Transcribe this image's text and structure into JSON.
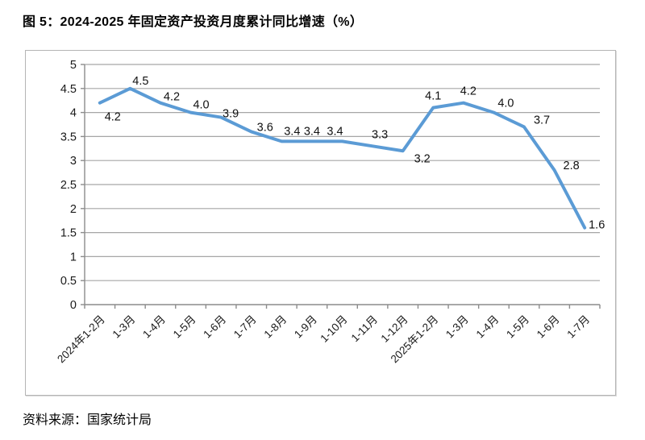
{
  "page": {
    "title": "图 5：2024-2025 年固定资产投资月度累计同比增速（%）",
    "source": "资料来源：国家统计局"
  },
  "chart_data": {
    "type": "line",
    "title": "图 5：2024-2025 年固定资产投资月度累计同比增速（%）",
    "categories": [
      "2024年1-2月",
      "1-3月",
      "1-4月",
      "1-5月",
      "1-6月",
      "1-7月",
      "1-8月",
      "1-9月",
      "1-10月",
      "1-11月",
      "1-12月",
      "2025年1-2月",
      "1-3月",
      "1-4月",
      "1-5月",
      "1-6月",
      "1-7月"
    ],
    "values": [
      4.2,
      4.5,
      4.2,
      4.0,
      3.9,
      3.6,
      3.4,
      3.4,
      3.4,
      3.3,
      3.2,
      4.1,
      4.2,
      4.0,
      3.7,
      2.8,
      1.6
    ],
    "xlabel": "",
    "ylabel": "",
    "ylim": [
      0,
      5
    ],
    "ytick_step": 0.5,
    "ytick_labels": [
      "0",
      "0.5",
      "1",
      "1.5",
      "2",
      "2.5",
      "3",
      "3.5",
      "4",
      "4.5",
      "5"
    ],
    "grid": true,
    "legend": "none",
    "data_labels": true,
    "line_color": "#5B9BD5",
    "axis_color": "#8c8c8c",
    "gridline_color": "#a6a6a6",
    "label_color": "#1a1a1a"
  }
}
